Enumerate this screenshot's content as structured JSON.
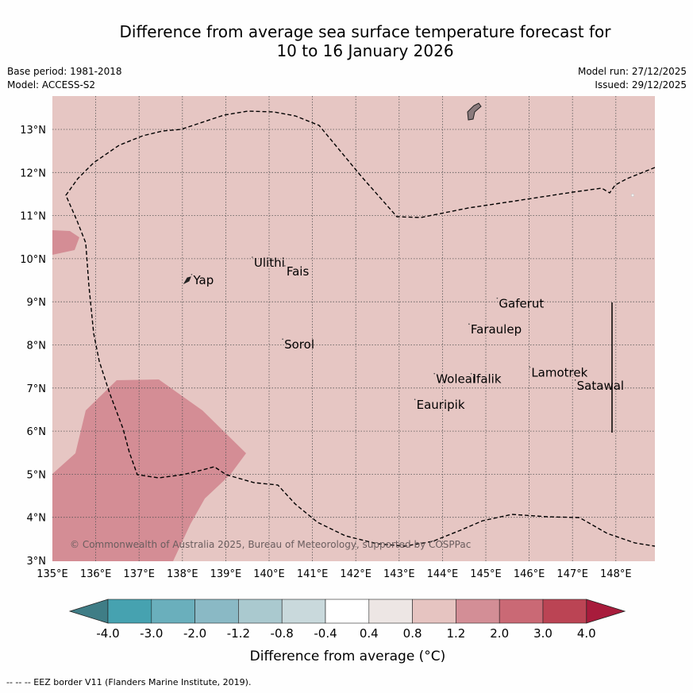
{
  "header": {
    "title_line1": "Difference from average sea surface temperature forecast for",
    "title_line2": "10 to 16 January 2026",
    "base_period": "Base period: 1981-2018",
    "model": "Model: ACCESS-S2",
    "model_run": "Model run: 27/12/2025",
    "issued": "Issued: 29/12/2025"
  },
  "map": {
    "lon_labels": [
      "135°E",
      "136°E",
      "137°E",
      "138°E",
      "139°E",
      "140°E",
      "141°E",
      "142°E",
      "143°E",
      "144°E",
      "145°E",
      "146°E",
      "147°E",
      "148°E"
    ],
    "lat_labels": [
      "3°N",
      "4°N",
      "5°N",
      "6°N",
      "7°N",
      "8°N",
      "9°N",
      "10°N",
      "11°N",
      "12°N",
      "13°N"
    ],
    "places": [
      {
        "name": "Yap",
        "lon": 138.25,
        "lat": 9.45
      },
      {
        "name": "Ulithi",
        "lon": 139.65,
        "lat": 9.85
      },
      {
        "name": "Fais",
        "lon": 140.4,
        "lat": 9.65
      },
      {
        "name": "Sorol",
        "lon": 140.35,
        "lat": 7.95
      },
      {
        "name": "Gaferut",
        "lon": 145.3,
        "lat": 8.9
      },
      {
        "name": "Faraulep",
        "lon": 144.65,
        "lat": 8.3
      },
      {
        "name": "Woleai",
        "lon": 143.85,
        "lat": 7.15
      },
      {
        "name": "Ifalik",
        "lon": 144.7,
        "lat": 7.15
      },
      {
        "name": "Lamotrek",
        "lon": 146.05,
        "lat": 7.3
      },
      {
        "name": "Satawal",
        "lon": 147.1,
        "lat": 7.0
      },
      {
        "name": "Eauripik",
        "lon": 143.4,
        "lat": 6.55
      }
    ],
    "copyright": "© Commonwealth of Australia 2025, Bureau of Meteorology, supported by COSPPac"
  },
  "colorbar": {
    "labels": [
      "-4.0",
      "-3.0",
      "-2.0",
      "-1.2",
      "-0.8",
      "-0.4",
      "0.4",
      "0.8",
      "1.2",
      "2.0",
      "3.0",
      "4.0"
    ],
    "colors": [
      "#3f7d86",
      "#46a2b0",
      "#6aafbc",
      "#8ab9c5",
      "#aac9cf",
      "#c9d9dc",
      "#ffffff",
      "#ede6e4",
      "#e6c4c1",
      "#d38e96",
      "#ca6975",
      "#bb4454",
      "#a81c3c"
    ],
    "label": "Difference from average (°C)"
  },
  "footnote": "-- -- -- EEZ border V11 (Flanders Marine Institute, 2019)."
}
